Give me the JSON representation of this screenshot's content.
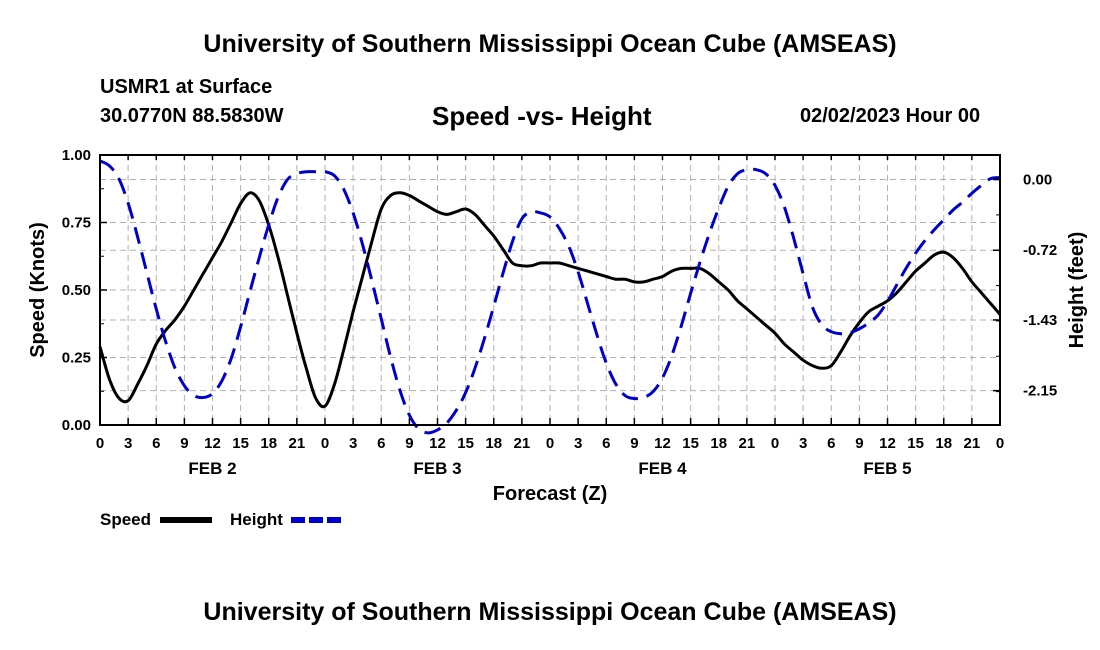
{
  "header": {
    "title": "University of Southern Mississippi Ocean Cube (AMSEAS)",
    "station": "USMR1 at Surface",
    "coords": "30.0770N  88.5830W",
    "subtitle": "Speed -vs- Height",
    "datetime": "02/02/2023 Hour 00"
  },
  "footer": {
    "title": "University of Southern Mississippi Ocean Cube (AMSEAS)"
  },
  "chart_data": {
    "type": "line",
    "title": "Speed -vs- Height",
    "xlabel": "Forecast (Z)",
    "ylabel": "Speed (Knots)",
    "y2label": "Height (feet)",
    "xlim": [
      0,
      96
    ],
    "ylim": [
      0,
      1.0
    ],
    "y2lim": [
      -2.5,
      0.25
    ],
    "x_tick_labels": [
      "0",
      "3",
      "6",
      "9",
      "12",
      "15",
      "18",
      "21",
      "0",
      "3",
      "6",
      "9",
      "12",
      "15",
      "18",
      "21",
      "0",
      "3",
      "6",
      "9",
      "12",
      "15",
      "18",
      "21",
      "0",
      "3",
      "6",
      "9",
      "12",
      "15",
      "18",
      "21",
      "0"
    ],
    "day_labels": [
      {
        "label": "FEB 2",
        "x": 12
      },
      {
        "label": "FEB 3",
        "x": 36
      },
      {
        "label": "FEB 4",
        "x": 60
      },
      {
        "label": "FEB 5",
        "x": 84
      }
    ],
    "y_ticks": [
      {
        "label": "0.00",
        "value": 0.0
      },
      {
        "label": "0.25",
        "value": 0.25
      },
      {
        "label": "0.50",
        "value": 0.5
      },
      {
        "label": "0.75",
        "value": 0.75
      },
      {
        "label": "1.00",
        "value": 1.0
      }
    ],
    "y2_ticks": [
      {
        "label": "0.00",
        "value": 0.0
      },
      {
        "label": "-0.72",
        "value": -0.72
      },
      {
        "label": "-1.43",
        "value": -1.43
      },
      {
        "label": "-2.15",
        "value": -2.15
      }
    ],
    "series": [
      {
        "name": "Speed",
        "axis": "left",
        "color": "#000000",
        "dash": "solid",
        "x": [
          0,
          1,
          2,
          3,
          4,
          5,
          6,
          7,
          8,
          9,
          10,
          11,
          12,
          13,
          14,
          15,
          16,
          17,
          18,
          19,
          20,
          21,
          22,
          23,
          24,
          25,
          26,
          27,
          28,
          29,
          30,
          31,
          32,
          33,
          34,
          35,
          36,
          37,
          38,
          39,
          40,
          41,
          42,
          43,
          44,
          45,
          46,
          47,
          48,
          49,
          50,
          51,
          52,
          53,
          54,
          55,
          56,
          57,
          58,
          59,
          60,
          61,
          62,
          63,
          64,
          65,
          66,
          67,
          68,
          69,
          70,
          71,
          72,
          73,
          74,
          75,
          76,
          77,
          78,
          79,
          80,
          81,
          82,
          83,
          84,
          85,
          86,
          87,
          88,
          89,
          90,
          91,
          92,
          93,
          94,
          95,
          96
        ],
        "values": [
          0.29,
          0.17,
          0.1,
          0.09,
          0.15,
          0.22,
          0.3,
          0.35,
          0.39,
          0.44,
          0.5,
          0.56,
          0.62,
          0.68,
          0.75,
          0.82,
          0.86,
          0.83,
          0.74,
          0.62,
          0.48,
          0.34,
          0.21,
          0.1,
          0.07,
          0.15,
          0.28,
          0.42,
          0.55,
          0.68,
          0.8,
          0.85,
          0.86,
          0.85,
          0.83,
          0.81,
          0.79,
          0.78,
          0.79,
          0.8,
          0.78,
          0.74,
          0.7,
          0.65,
          0.6,
          0.59,
          0.59,
          0.6,
          0.6,
          0.6,
          0.59,
          0.58,
          0.57,
          0.56,
          0.55,
          0.54,
          0.54,
          0.53,
          0.53,
          0.54,
          0.55,
          0.57,
          0.58,
          0.58,
          0.58,
          0.56,
          0.53,
          0.5,
          0.46,
          0.43,
          0.4,
          0.37,
          0.34,
          0.3,
          0.27,
          0.24,
          0.22,
          0.21,
          0.22,
          0.27,
          0.33,
          0.38,
          0.42,
          0.44,
          0.46,
          0.49,
          0.53,
          0.57,
          0.6,
          0.63,
          0.64,
          0.62,
          0.58,
          0.53,
          0.49,
          0.45,
          0.41
        ]
      },
      {
        "name": "Height",
        "axis": "right",
        "color": "#0000cc",
        "dash": "dashed",
        "x": [
          0,
          1,
          2,
          3,
          4,
          5,
          6,
          7,
          8,
          9,
          10,
          11,
          12,
          13,
          14,
          15,
          16,
          17,
          18,
          19,
          20,
          21,
          22,
          23,
          24,
          25,
          26,
          27,
          28,
          29,
          30,
          31,
          32,
          33,
          34,
          35,
          36,
          37,
          38,
          39,
          40,
          41,
          42,
          43,
          44,
          45,
          46,
          47,
          48,
          49,
          50,
          51,
          52,
          53,
          54,
          55,
          56,
          57,
          58,
          59,
          60,
          61,
          62,
          63,
          64,
          65,
          66,
          67,
          68,
          69,
          70,
          71,
          72,
          73,
          74,
          75,
          76,
          77,
          78,
          79,
          80,
          81,
          82,
          83,
          84,
          85,
          86,
          87,
          88,
          89,
          90,
          91,
          92,
          93,
          94,
          95,
          96
        ],
        "values": [
          0.19,
          0.14,
          0.01,
          -0.24,
          -0.58,
          -0.95,
          -1.32,
          -1.65,
          -1.92,
          -2.1,
          -2.2,
          -2.22,
          -2.18,
          -2.05,
          -1.82,
          -1.5,
          -1.14,
          -0.79,
          -0.46,
          -0.18,
          0.0,
          0.06,
          0.08,
          0.08,
          0.08,
          0.04,
          -0.1,
          -0.34,
          -0.66,
          -1.03,
          -1.42,
          -1.81,
          -2.15,
          -2.4,
          -2.54,
          -2.58,
          -2.55,
          -2.48,
          -2.35,
          -2.17,
          -1.92,
          -1.62,
          -1.29,
          -0.95,
          -0.63,
          -0.4,
          -0.33,
          -0.34,
          -0.38,
          -0.5,
          -0.68,
          -0.94,
          -1.26,
          -1.58,
          -1.87,
          -2.08,
          -2.2,
          -2.23,
          -2.22,
          -2.16,
          -2.02,
          -1.79,
          -1.49,
          -1.16,
          -0.84,
          -0.55,
          -0.29,
          -0.07,
          0.06,
          0.1,
          0.1,
          0.06,
          -0.06,
          -0.28,
          -0.6,
          -0.96,
          -1.3,
          -1.48,
          -1.55,
          -1.57,
          -1.56,
          -1.52,
          -1.46,
          -1.38,
          -1.24,
          -1.07,
          -0.9,
          -0.75,
          -0.62,
          -0.51,
          -0.41,
          -0.31,
          -0.23,
          -0.14,
          -0.06,
          0.01,
          0.02
        ]
      }
    ],
    "legend": [
      {
        "label": "Speed",
        "color": "#000000",
        "dash": "solid"
      },
      {
        "label": "Height",
        "color": "#0000cc",
        "dash": "dashed"
      }
    ],
    "grid": true,
    "legend_position": "bottom-left"
  }
}
